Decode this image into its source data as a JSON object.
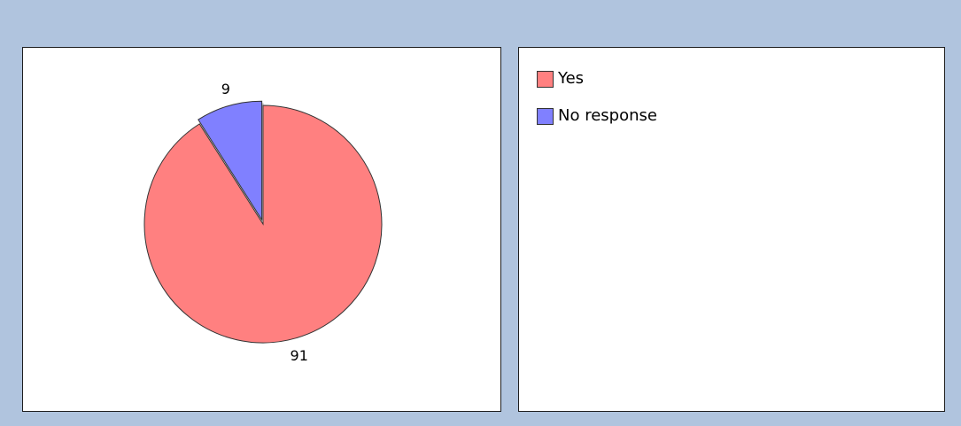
{
  "chart_data": {
    "type": "pie",
    "categories": [
      "Yes",
      "No response"
    ],
    "values": [
      91,
      9
    ],
    "colors": [
      "#ff8080",
      "#8080ff"
    ],
    "exploded": [
      false,
      true
    ],
    "start_angle_deg": 90,
    "direction": "clockwise",
    "legend_position": "right-panel",
    "slice_labels": [
      "91",
      "9"
    ]
  },
  "legend": {
    "items": [
      {
        "label": "Yes",
        "color": "#ff8080"
      },
      {
        "label": "No response",
        "color": "#8080ff"
      }
    ]
  }
}
